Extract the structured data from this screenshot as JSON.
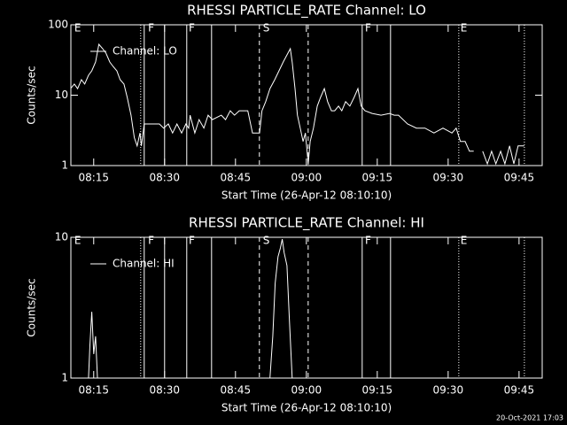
{
  "chart_data": [
    {
      "type": "line",
      "title": "RHESSI PARTICLE_RATE Channel: LO",
      "xlabel": "Start Time (26-Apr-12 08:10:10)",
      "ylabel": "Counts/sec",
      "log_y": true,
      "ylim": [
        1,
        100
      ],
      "yticks": [
        1,
        10,
        100
      ],
      "xlim": [
        490.17,
        589.9
      ],
      "xticks": [
        {
          "value": 495,
          "label": "08:15"
        },
        {
          "value": 510,
          "label": "08:30"
        },
        {
          "value": 525,
          "label": "08:45"
        },
        {
          "value": 540,
          "label": "09:00"
        },
        {
          "value": 555,
          "label": "09:15"
        },
        {
          "value": 570,
          "label": "09:30"
        },
        {
          "value": 585,
          "label": "09:45"
        }
      ],
      "x": [
        490.1,
        490.9,
        491.6,
        492.4,
        493.1,
        493.9,
        494.6,
        495.4,
        496.1,
        496.9,
        497.6,
        498.4,
        499.1,
        499.9,
        500.6,
        501.4,
        502.1,
        502.9,
        503.6,
        504.2,
        504.8,
        505.1,
        505.7,
        506.1,
        508.9,
        509.8,
        510.8,
        511.7,
        512.6,
        513.6,
        514.5,
        515.1,
        515.4,
        516.4,
        517.3,
        518.3,
        519.2,
        520.1,
        522,
        522.9,
        523.9,
        524.8,
        525.8,
        527.6,
        528.6,
        530.1,
        530.6,
        531.4,
        532.3,
        533.3,
        534.2,
        535.1,
        536.1,
        536.6,
        537,
        537.6,
        538.1,
        538.7,
        539.3,
        539.8,
        540.4,
        540.8,
        541.5,
        542.3,
        543,
        543.8,
        544.5,
        545.3,
        546,
        546.8,
        547.5,
        548.3,
        549.2,
        550.1,
        550.9,
        551.6,
        552.4,
        553.9,
        555.8,
        557.6,
        558.6,
        559.5,
        561.4,
        563.3,
        565.1,
        567,
        568.9,
        570.8,
        571.7,
        572.6,
        573.6,
        574.5,
        575.4,
        576.4,
        577.3,
        578.3,
        579.2,
        580.1,
        581.1,
        582,
        583,
        583.9,
        584.8,
        586.1
      ],
      "series": [
        {
          "name": "Channel: LO",
          "color": "#ffffff",
          "values": [
            12.4,
            14.4,
            12.4,
            16.6,
            14.4,
            19.2,
            22.2,
            29.6,
            52.9,
            45.8,
            39.6,
            29.6,
            25.6,
            22.2,
            16.6,
            14.4,
            9.3,
            5.2,
            2.5,
            1.9,
            2.9,
            1.9,
            3.9,
            3.9,
            3.9,
            3.4,
            3.9,
            2.9,
            3.9,
            2.9,
            3.9,
            3.4,
            5.2,
            2.9,
            4.5,
            3.4,
            5.2,
            4.5,
            5.2,
            4.5,
            6.0,
            5.2,
            6.0,
            6.0,
            2.9,
            2.9,
            6.0,
            8.1,
            12.4,
            16.6,
            22.2,
            29.6,
            39.6,
            45.8,
            29.6,
            12.4,
            5.2,
            3.4,
            2.2,
            2.9,
            1.06,
            2.2,
            3.4,
            7.0,
            9.3,
            12.4,
            8.1,
            6.0,
            6.0,
            7.0,
            6.0,
            8.1,
            7.0,
            9.3,
            12.4,
            7.0,
            6.0,
            5.5,
            5.2,
            5.5,
            5.2,
            5.2,
            3.9,
            3.4,
            3.4,
            2.9,
            3.4,
            2.9,
            3.4,
            2.2,
            2.2,
            1.6,
            1.6,
            null,
            1.6,
            1.06,
            1.6,
            1.06,
            1.6,
            1.06,
            1.9,
            1.06,
            1.9,
            1.9
          ]
        }
      ],
      "markers": [
        {
          "x": 504.94,
          "style": "dotted"
        },
        {
          "x": 505.69,
          "style": "solid"
        },
        {
          "x": 510,
          "style": "solid"
        },
        {
          "x": 514.69,
          "style": "solid"
        },
        {
          "x": 519.94,
          "style": "solid"
        },
        {
          "x": 530.06,
          "style": "dashed"
        },
        {
          "x": 540.38,
          "style": "dashed"
        },
        {
          "x": 551.81,
          "style": "solid"
        },
        {
          "x": 557.81,
          "style": "solid"
        },
        {
          "x": 572.25,
          "style": "dotted"
        },
        {
          "x": 586.13,
          "style": "dotted"
        }
      ],
      "marker_labels": [
        {
          "x": 490.9,
          "text": "E"
        },
        {
          "x": 506.5,
          "text": "F"
        },
        {
          "x": 515.1,
          "text": "F"
        },
        {
          "x": 530.8,
          "text": "S"
        },
        {
          "x": 552.4,
          "text": "F"
        },
        {
          "x": 572.6,
          "text": "E"
        }
      ]
    },
    {
      "type": "line",
      "title": "RHESSI PARTICLE_RATE Channel: HI",
      "xlabel": "Start Time (26-Apr-12 08:10:10)",
      "ylabel": "Counts/sec",
      "log_y": true,
      "ylim": [
        1,
        10
      ],
      "yticks": [
        1,
        10
      ],
      "xlim": [
        490.17,
        589.9
      ],
      "xticks": [
        {
          "value": 495,
          "label": "08:15"
        },
        {
          "value": 510,
          "label": "08:30"
        },
        {
          "value": 525,
          "label": "08:45"
        },
        {
          "value": 540,
          "label": "09:00"
        },
        {
          "value": 555,
          "label": "09:15"
        },
        {
          "value": 570,
          "label": "09:30"
        },
        {
          "value": 585,
          "label": "09:45"
        }
      ],
      "x": [
        493.9,
        494.2,
        494.6,
        495,
        495.4,
        495.8,
        514,
        532.3,
        532.9,
        533.4,
        534,
        534.5,
        534.9,
        535.3,
        535.9,
        536.4,
        537
      ],
      "series": [
        {
          "name": "Channel: HI",
          "color": "#ffffff",
          "values": [
            1,
            1.71,
            2.96,
            1.48,
            1.98,
            1,
            null,
            1,
            1.98,
            4.71,
            7.27,
            8.4,
            9.7,
            7.8,
            6.3,
            2.64,
            1
          ]
        }
      ],
      "markers": [
        {
          "x": 504.94,
          "style": "dotted"
        },
        {
          "x": 505.69,
          "style": "solid"
        },
        {
          "x": 510,
          "style": "solid"
        },
        {
          "x": 514.69,
          "style": "solid"
        },
        {
          "x": 519.94,
          "style": "solid"
        },
        {
          "x": 530.06,
          "style": "dashed"
        },
        {
          "x": 540.38,
          "style": "dashed"
        },
        {
          "x": 551.81,
          "style": "solid"
        },
        {
          "x": 557.81,
          "style": "solid"
        },
        {
          "x": 572.25,
          "style": "dotted"
        },
        {
          "x": 586.13,
          "style": "dotted"
        }
      ],
      "marker_labels": [
        {
          "x": 490.9,
          "text": "E"
        },
        {
          "x": 506.5,
          "text": "F"
        },
        {
          "x": 515.1,
          "text": "F"
        },
        {
          "x": 530.8,
          "text": "S"
        },
        {
          "x": 552.4,
          "text": "F"
        },
        {
          "x": 572.6,
          "text": "E"
        }
      ]
    }
  ],
  "footer": "20-Oct-2021 17:03"
}
